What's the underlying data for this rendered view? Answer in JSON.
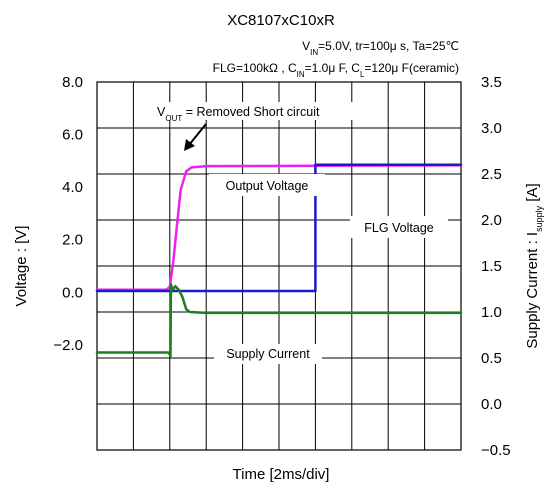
{
  "chart_data": {
    "type": "line",
    "title": "XC8107xC10xR",
    "conditions": {
      "line1": {
        "vin_label": "V",
        "vin_sub": "IN",
        "rest": "=5.0V, tr=100μ s, Ta=25℃"
      },
      "line2": {
        "flg": "FLG=100kΩ , C",
        "cin_sub": "IN",
        "cin_rest": "=1.0μ F, C",
        "cl_sub": "L",
        "cl_rest": "=120μ F(ceramic)"
      }
    },
    "xlabel": "Time [2ms/div]",
    "ylabel_left": "Voltage : [V]",
    "ylabel_right": {
      "main": "Supply Current : I",
      "sub": "supply",
      "unit": " [A]"
    },
    "x_divisions": 10,
    "ylim_left": [
      -6,
      8
    ],
    "ylim_right": [
      -0.5,
      3.5
    ],
    "left_ticks": [
      {
        "value": 8,
        "label": "8.0"
      },
      {
        "value": 6,
        "label": "6.0"
      },
      {
        "value": 4,
        "label": "4.0"
      },
      {
        "value": 2,
        "label": "2.0"
      },
      {
        "value": 0,
        "label": "0.0"
      },
      {
        "value": -2,
        "label": "−2.0"
      }
    ],
    "right_ticks": [
      {
        "value": 3.5,
        "label": "3.5"
      },
      {
        "value": 3.0,
        "label": "3.0"
      },
      {
        "value": 2.5,
        "label": "2.5"
      },
      {
        "value": 2.0,
        "label": "2.0"
      },
      {
        "value": 1.5,
        "label": "1.5"
      },
      {
        "value": 1.0,
        "label": "1.0"
      },
      {
        "value": 0.5,
        "label": "0.5"
      },
      {
        "value": 0.0,
        "label": "0.0"
      },
      {
        "value": -0.5,
        "label": "−0.5"
      }
    ],
    "series": [
      {
        "name": "Output Voltage",
        "axis": "left",
        "color": "#ee22ee",
        "points": [
          [
            0,
            0.1
          ],
          [
            1.9,
            0.1
          ],
          [
            2.0,
            0.2
          ],
          [
            2.1,
            1.2
          ],
          [
            2.2,
            2.6
          ],
          [
            2.3,
            3.9
          ],
          [
            2.45,
            4.6
          ],
          [
            2.6,
            4.75
          ],
          [
            3.0,
            4.8
          ],
          [
            10,
            4.83
          ]
        ]
      },
      {
        "name": "FLG Voltage",
        "axis": "left",
        "color": "#1a1acc",
        "points": [
          [
            0,
            0.05
          ],
          [
            2.0,
            0.05
          ],
          [
            6.0,
            0.05
          ],
          [
            6.0,
            4.85
          ],
          [
            10,
            4.85
          ]
        ]
      },
      {
        "name": "Supply Current",
        "axis": "right",
        "color": "#1e7d1e",
        "points": [
          [
            0,
            0.56
          ],
          [
            1.97,
            0.56
          ],
          [
            2.02,
            0.52
          ],
          [
            2.03,
            1.3
          ],
          [
            2.08,
            1.24
          ],
          [
            2.15,
            1.28
          ],
          [
            2.25,
            1.24
          ],
          [
            2.35,
            1.16
          ],
          [
            2.45,
            1.03
          ],
          [
            2.55,
            1.0
          ],
          [
            3,
            0.99
          ],
          [
            10,
            0.99
          ]
        ]
      }
    ],
    "annotations": {
      "vout_main": "V",
      "vout_sub": "OUT",
      "vout_rest": " = Removed Short circuit",
      "output_voltage": "Output Voltage",
      "flg_voltage": "FLG Voltage",
      "supply_current": "Supply Current"
    }
  }
}
